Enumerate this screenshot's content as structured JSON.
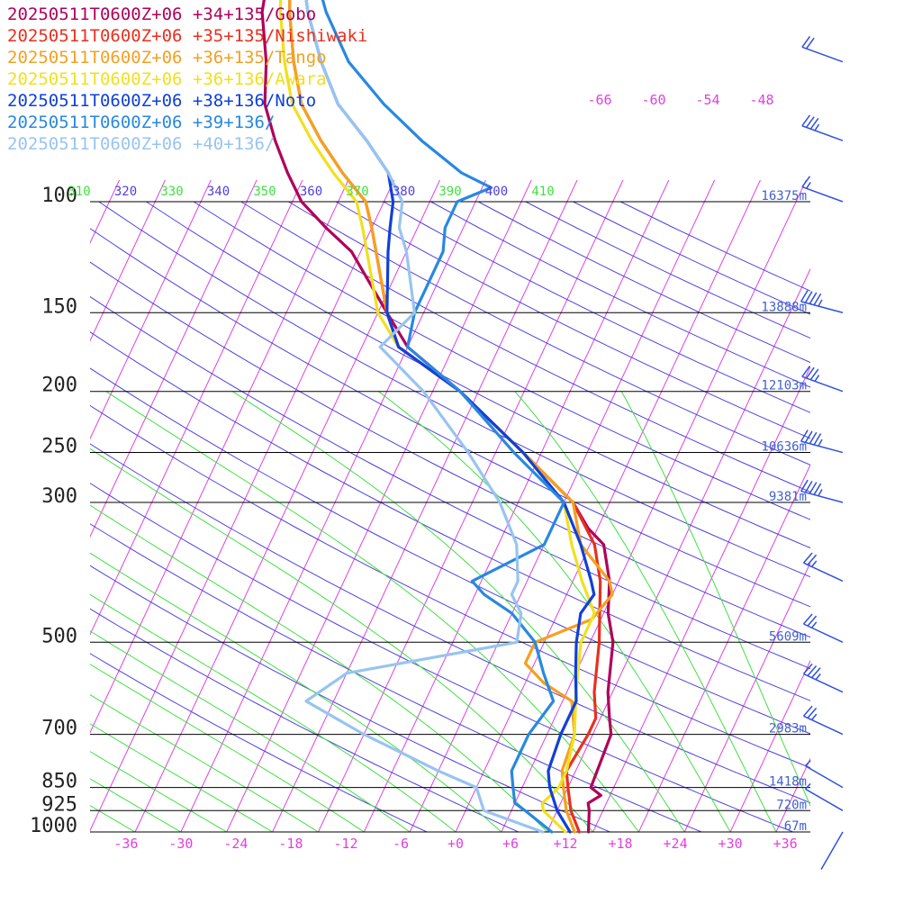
{
  "legend": [
    {
      "label": "20250511T0600Z+06 +34+135/Gobo",
      "color": "#b0005a"
    },
    {
      "label": "20250511T0600Z+06 +35+135/Nishiwaki",
      "color": "#e8301e"
    },
    {
      "label": "20250511T0600Z+06 +36+135/Tango",
      "color": "#f5a020"
    },
    {
      "label": "20250511T0600Z+06 +36+136/Awara",
      "color": "#f0e020"
    },
    {
      "label": "20250511T0600Z+06 +38+136/Noto",
      "color": "#1040d8"
    },
    {
      "label": "20250511T0600Z+06 +39+136/",
      "color": "#2888e0"
    },
    {
      "label": "20250511T0600Z+06 +40+136/",
      "color": "#98c4f0"
    }
  ],
  "chart_data": {
    "type": "line",
    "pressure_levels": [
      "100",
      "150",
      "200",
      "250",
      "300",
      "500",
      "700",
      "850",
      "925",
      "1000"
    ],
    "height_labels": [
      {
        "p": 100,
        "label": "16375m"
      },
      {
        "p": 150,
        "label": "13888m"
      },
      {
        "p": 200,
        "label": "12103m"
      },
      {
        "p": 250,
        "label": "10636m"
      },
      {
        "p": 300,
        "label": "9381m"
      },
      {
        "p": 500,
        "label": "5609m"
      },
      {
        "p": 700,
        "label": "2983m"
      },
      {
        "p": 850,
        "label": "1418m"
      },
      {
        "p": 925,
        "label": "720m"
      },
      {
        "p": 1000,
        "label": "67m"
      }
    ],
    "temperature_ticks": [
      "-36",
      "-30",
      "-24",
      "-18",
      "-12",
      "-6",
      "+0",
      "+6",
      "+12",
      "+18",
      "+24",
      "+30",
      "+36"
    ],
    "upper_temperature_labels": [
      "-66",
      "-60",
      "-54",
      "-48"
    ],
    "theta_labels": [
      "310",
      "320",
      "330",
      "340",
      "350",
      "360",
      "370",
      "380",
      "390",
      "400",
      "410"
    ],
    "colors": {
      "isotherm": "#e040e0",
      "dry_adiabat": "#5040e0",
      "moist_adiabat": "#40e040",
      "isobar": "#000000",
      "height_label": "#4060d0",
      "barb": "#3050e0"
    },
    "series": [
      {
        "name": "20250511T0600Z+06 +34+135/Gobo",
        "color": "#b0005a",
        "points": [
          [
            1000,
            14.5
          ],
          [
            925,
            13.5
          ],
          [
            900,
            13
          ],
          [
            875,
            14
          ],
          [
            850,
            12.5
          ],
          [
            700,
            12
          ],
          [
            660,
            11
          ],
          [
            600,
            9.5
          ],
          [
            500,
            7.5
          ],
          [
            450,
            5.5
          ],
          [
            400,
            4
          ],
          [
            350,
            1.5
          ],
          [
            330,
            -1
          ],
          [
            300,
            -4
          ],
          [
            250,
            -12
          ],
          [
            200,
            -22
          ],
          [
            170,
            -30
          ],
          [
            150,
            -34
          ],
          [
            120,
            -41
          ],
          [
            110,
            -45
          ],
          [
            100,
            -49
          ],
          [
            90,
            -52
          ],
          [
            80,
            -55
          ],
          [
            70,
            -58
          ],
          [
            60,
            -60
          ],
          [
            50,
            -63
          ],
          [
            40,
            -65
          ]
        ]
      },
      {
        "name": "20250511T0600Z+06 +35+135/Nishiwaki",
        "color": "#e8301e",
        "points": [
          [
            1000,
            13.5
          ],
          [
            925,
            11.5
          ],
          [
            850,
            10
          ],
          [
            800,
            9
          ],
          [
            700,
            9.5
          ],
          [
            660,
            9.5
          ],
          [
            600,
            8
          ],
          [
            500,
            6
          ],
          [
            400,
            3
          ],
          [
            350,
            0.5
          ],
          [
            300,
            -4
          ],
          [
            250,
            -12
          ],
          [
            200,
            -22
          ],
          [
            170,
            -31
          ],
          [
            150,
            -34
          ],
          [
            110,
            -40
          ],
          [
            100,
            -42
          ],
          [
            90,
            -46
          ],
          [
            80,
            -50
          ],
          [
            70,
            -54
          ],
          [
            60,
            -57
          ],
          [
            50,
            -60
          ],
          [
            40,
            -63
          ]
        ]
      },
      {
        "name": "20250511T0600Z+06 +36+135/Tango",
        "color": "#f5a020",
        "points": [
          [
            1000,
            13
          ],
          [
            925,
            11
          ],
          [
            850,
            9.5
          ],
          [
            800,
            8.5
          ],
          [
            700,
            8
          ],
          [
            620,
            6
          ],
          [
            580,
            2
          ],
          [
            540,
            -1
          ],
          [
            500,
            -1
          ],
          [
            460,
            4
          ],
          [
            420,
            5
          ],
          [
            400,
            4
          ],
          [
            350,
            -1
          ],
          [
            300,
            -4
          ],
          [
            250,
            -12
          ],
          [
            200,
            -22
          ],
          [
            170,
            -31
          ],
          [
            150,
            -34
          ],
          [
            110,
            -40
          ],
          [
            100,
            -42
          ],
          [
            90,
            -46
          ],
          [
            80,
            -50
          ],
          [
            70,
            -54
          ],
          [
            60,
            -57
          ],
          [
            50,
            -60
          ],
          [
            40,
            -63
          ]
        ]
      },
      {
        "name": "20250511T0600Z+06 +36+136/Awara",
        "color": "#f0e020",
        "points": [
          [
            1000,
            12
          ],
          [
            925,
            8.5
          ],
          [
            900,
            8
          ],
          [
            850,
            9
          ],
          [
            800,
            9
          ],
          [
            700,
            8
          ],
          [
            600,
            6
          ],
          [
            500,
            4
          ],
          [
            450,
            4
          ],
          [
            400,
            1
          ],
          [
            350,
            -2
          ],
          [
            300,
            -5
          ],
          [
            250,
            -12
          ],
          [
            200,
            -22
          ],
          [
            170,
            -31
          ],
          [
            150,
            -35
          ],
          [
            110,
            -41
          ],
          [
            100,
            -43
          ],
          [
            90,
            -47
          ],
          [
            80,
            -51
          ],
          [
            70,
            -55
          ],
          [
            60,
            -58
          ],
          [
            50,
            -61
          ],
          [
            40,
            -64
          ]
        ]
      },
      {
        "name": "20250511T0600Z+06 +38+136/Noto",
        "color": "#1040d8",
        "points": [
          [
            1000,
            12.5
          ],
          [
            925,
            10
          ],
          [
            850,
            8
          ],
          [
            800,
            7
          ],
          [
            700,
            6.5
          ],
          [
            620,
            6.5
          ],
          [
            560,
            5
          ],
          [
            500,
            3.5
          ],
          [
            450,
            2.5
          ],
          [
            420,
            3
          ],
          [
            400,
            2
          ],
          [
            350,
            -1
          ],
          [
            300,
            -5
          ],
          [
            250,
            -12
          ],
          [
            200,
            -22
          ],
          [
            170,
            -31
          ],
          [
            150,
            -34
          ],
          [
            120,
            -37
          ],
          [
            110,
            -38
          ],
          [
            100,
            -39
          ],
          [
            90,
            -41
          ],
          [
            80,
            -45
          ],
          [
            70,
            -50
          ],
          [
            60,
            -54
          ],
          [
            50,
            -58
          ],
          [
            40,
            -62
          ]
        ]
      },
      {
        "name": "20250511T0600Z+06 +39+136/",
        "color": "#2888e0",
        "points": [
          [
            1000,
            10.5
          ],
          [
            925,
            6.5
          ],
          [
            900,
            5
          ],
          [
            850,
            4
          ],
          [
            800,
            3
          ],
          [
            700,
            3
          ],
          [
            620,
            4
          ],
          [
            560,
            1.5
          ],
          [
            500,
            -1
          ],
          [
            450,
            -5
          ],
          [
            420,
            -9
          ],
          [
            400,
            -11
          ],
          [
            350,
            -5
          ],
          [
            300,
            -5
          ],
          [
            250,
            -13
          ],
          [
            200,
            -22
          ],
          [
            170,
            -30
          ],
          [
            150,
            -31
          ],
          [
            120,
            -31
          ],
          [
            110,
            -32
          ],
          [
            100,
            -32
          ],
          [
            95,
            -29
          ],
          [
            90,
            -33
          ],
          [
            80,
            -39
          ],
          [
            70,
            -45
          ],
          [
            60,
            -51
          ],
          [
            50,
            -56
          ],
          [
            40,
            -61
          ]
        ]
      },
      {
        "name": "20250511T0600Z+06 +40+136/",
        "color": "#98c4f0",
        "points": [
          [
            1000,
            9.5
          ],
          [
            925,
            2
          ],
          [
            850,
            0
          ],
          [
            800,
            -5
          ],
          [
            700,
            -15
          ],
          [
            620,
            -23
          ],
          [
            560,
            -20
          ],
          [
            500,
            -3
          ],
          [
            450,
            -4
          ],
          [
            420,
            -6
          ],
          [
            400,
            -6
          ],
          [
            350,
            -8
          ],
          [
            300,
            -12
          ],
          [
            250,
            -18
          ],
          [
            200,
            -26
          ],
          [
            170,
            -33
          ],
          [
            150,
            -31
          ],
          [
            120,
            -35
          ],
          [
            110,
            -37
          ],
          [
            100,
            -38
          ],
          [
            90,
            -41
          ],
          [
            80,
            -45
          ],
          [
            70,
            -50
          ],
          [
            60,
            -54
          ],
          [
            50,
            -58
          ],
          [
            40,
            -62
          ]
        ]
      }
    ],
    "wind_barbs": [
      {
        "p": 60,
        "speed_kt": 20,
        "dir_deg": 290
      },
      {
        "p": 80,
        "speed_kt": 35,
        "dir_deg": 290
      },
      {
        "p": 100,
        "speed_kt": 15,
        "dir_deg": 290
      },
      {
        "p": 150,
        "speed_kt": 45,
        "dir_deg": 285
      },
      {
        "p": 200,
        "speed_kt": 35,
        "dir_deg": 290
      },
      {
        "p": 250,
        "speed_kt": 45,
        "dir_deg": 285
      },
      {
        "p": 300,
        "speed_kt": 45,
        "dir_deg": 285
      },
      {
        "p": 400,
        "speed_kt": 25,
        "dir_deg": 295
      },
      {
        "p": 500,
        "speed_kt": 25,
        "dir_deg": 295
      },
      {
        "p": 600,
        "speed_kt": 35,
        "dir_deg": 295
      },
      {
        "p": 700,
        "speed_kt": 25,
        "dir_deg": 295
      },
      {
        "p": 850,
        "speed_kt": 5,
        "dir_deg": 300
      },
      {
        "p": 925,
        "speed_kt": 5,
        "dir_deg": 300
      },
      {
        "p": 1000,
        "speed_kt": 0,
        "dir_deg": 210
      }
    ]
  }
}
